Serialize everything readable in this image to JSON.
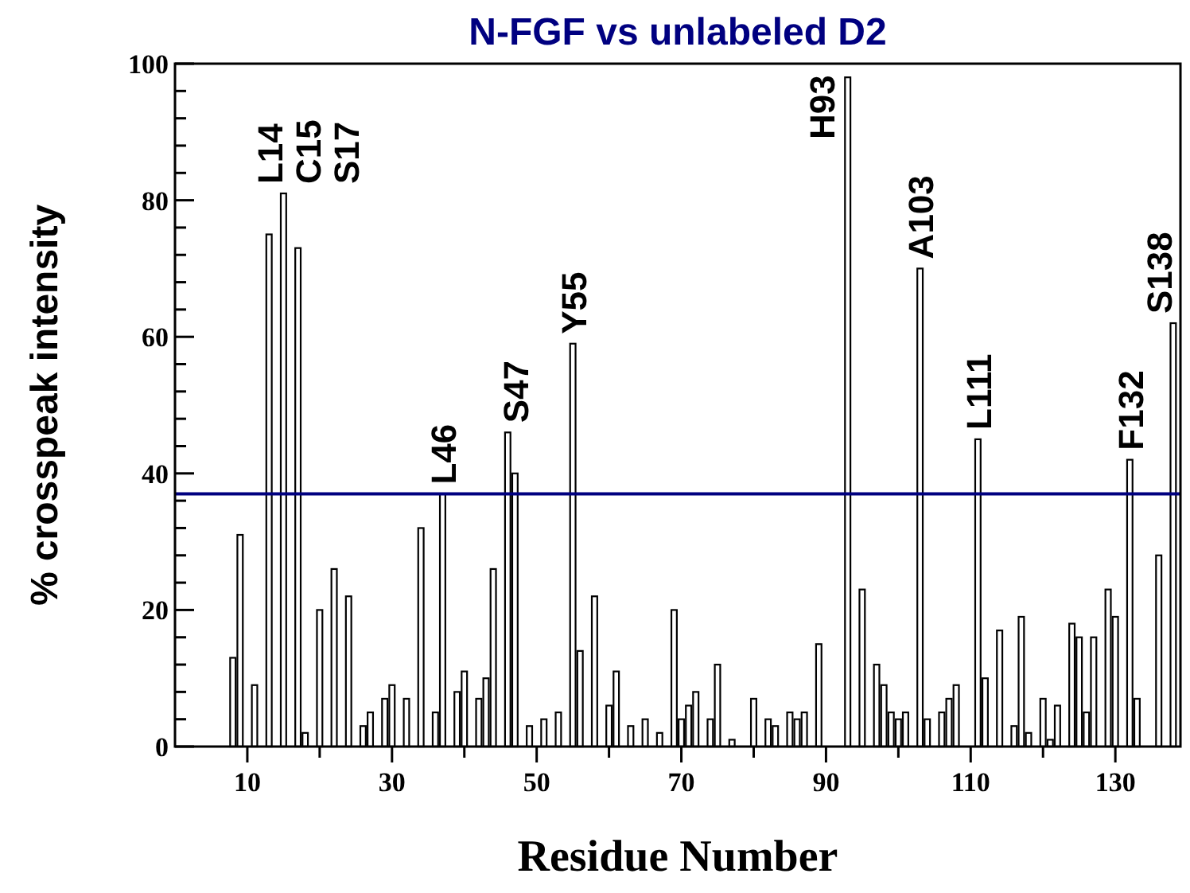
{
  "chart_data": {
    "type": "bar",
    "title": "N-FGF vs unlabeled D2",
    "xlabel": "Residue Number",
    "ylabel": "% crosspeak intensity",
    "x": [
      8,
      9,
      11,
      13,
      15,
      17,
      18,
      20,
      22,
      24,
      26,
      27,
      29,
      30,
      32,
      34,
      36,
      37,
      39,
      40,
      42,
      43,
      44,
      46,
      47,
      49,
      51,
      53,
      55,
      56,
      58,
      60,
      61,
      63,
      65,
      67,
      69,
      70,
      71,
      72,
      74,
      75,
      77,
      80,
      82,
      83,
      85,
      86,
      87,
      89,
      93,
      95,
      97,
      98,
      99,
      100,
      101,
      103,
      104,
      106,
      107,
      108,
      111,
      112,
      114,
      116,
      117,
      118,
      120,
      121,
      122,
      124,
      125,
      126,
      127,
      129,
      130,
      132,
      133,
      136,
      138
    ],
    "values": [
      13,
      31,
      9,
      75,
      81,
      73,
      2,
      20,
      26,
      22,
      3,
      5,
      7,
      9,
      7,
      32,
      5,
      37,
      8,
      11,
      7,
      10,
      26,
      46,
      40,
      3,
      4,
      5,
      59,
      14,
      22,
      6,
      11,
      3,
      4,
      2,
      20,
      4,
      6,
      8,
      4,
      12,
      1,
      7,
      4,
      3,
      5,
      4,
      5,
      15,
      98,
      23,
      12,
      9,
      5,
      4,
      5,
      70,
      4,
      5,
      7,
      9,
      45,
      10,
      17,
      3,
      19,
      2,
      7,
      1,
      6,
      18,
      16,
      5,
      16,
      23,
      19,
      42,
      7,
      28,
      62
    ],
    "color": "#ffffff",
    "xlim": [
      0,
      139
    ],
    "xticks": [
      {
        "value": 10,
        "label": "10"
      },
      {
        "value": 20,
        "label": null
      },
      {
        "value": 30,
        "label": "30"
      },
      {
        "value": 40,
        "label": null
      },
      {
        "value": 50,
        "label": "50"
      },
      {
        "value": 60,
        "label": null
      },
      {
        "value": 70,
        "label": "70"
      },
      {
        "value": 80,
        "label": null
      },
      {
        "value": 90,
        "label": "90"
      },
      {
        "value": 100,
        "label": null
      },
      {
        "value": 110,
        "label": "110"
      },
      {
        "value": 120,
        "label": null
      },
      {
        "value": 130,
        "label": "130"
      }
    ],
    "ylim": [
      0,
      100
    ],
    "yticks": [
      0,
      {
        "value": 4,
        "label": null
      },
      {
        "value": 8,
        "label": null
      },
      {
        "value": 12,
        "label": null
      },
      {
        "value": 16,
        "label": null
      },
      20,
      {
        "value": 24,
        "label": null
      },
      {
        "value": 28,
        "label": null
      },
      {
        "value": 32,
        "label": null
      },
      {
        "value": 36,
        "label": null
      },
      40,
      {
        "value": 44,
        "label": null
      },
      {
        "value": 48,
        "label": null
      },
      {
        "value": 52,
        "label": null
      },
      {
        "value": 56,
        "label": null
      },
      60,
      {
        "value": 64,
        "label": null
      },
      {
        "value": 68,
        "label": null
      },
      {
        "value": 72,
        "label": null
      },
      {
        "value": 76,
        "label": null
      },
      80,
      {
        "value": 84,
        "label": null
      },
      {
        "value": 88,
        "label": null
      },
      {
        "value": 92,
        "label": null
      },
      {
        "value": 96,
        "label": null
      },
      100
    ],
    "ref_lines": [
      {
        "axis": "y",
        "value": 37,
        "color": "#000080"
      }
    ],
    "annotations": [
      {
        "text": "L14",
        "x": 13,
        "y": 75
      },
      {
        "text": "C15",
        "x": 15,
        "y": 81
      },
      {
        "text": "S17",
        "x": 17,
        "y": 73
      },
      {
        "text": "L46",
        "x": 37,
        "y": 37
      },
      {
        "text": "S47",
        "x": 47,
        "y": 40
      },
      {
        "text": "Y55",
        "x": 55,
        "y": 59
      },
      {
        "text": "H93",
        "x": 93,
        "y": 98
      },
      {
        "text": "A103",
        "x": 103,
        "y": 70
      },
      {
        "text": "L111",
        "x": 111,
        "y": 45
      },
      {
        "text": "F132",
        "x": 132,
        "y": 42
      },
      {
        "text": "S138",
        "x": 138,
        "y": 62
      }
    ],
    "grid": false
  }
}
